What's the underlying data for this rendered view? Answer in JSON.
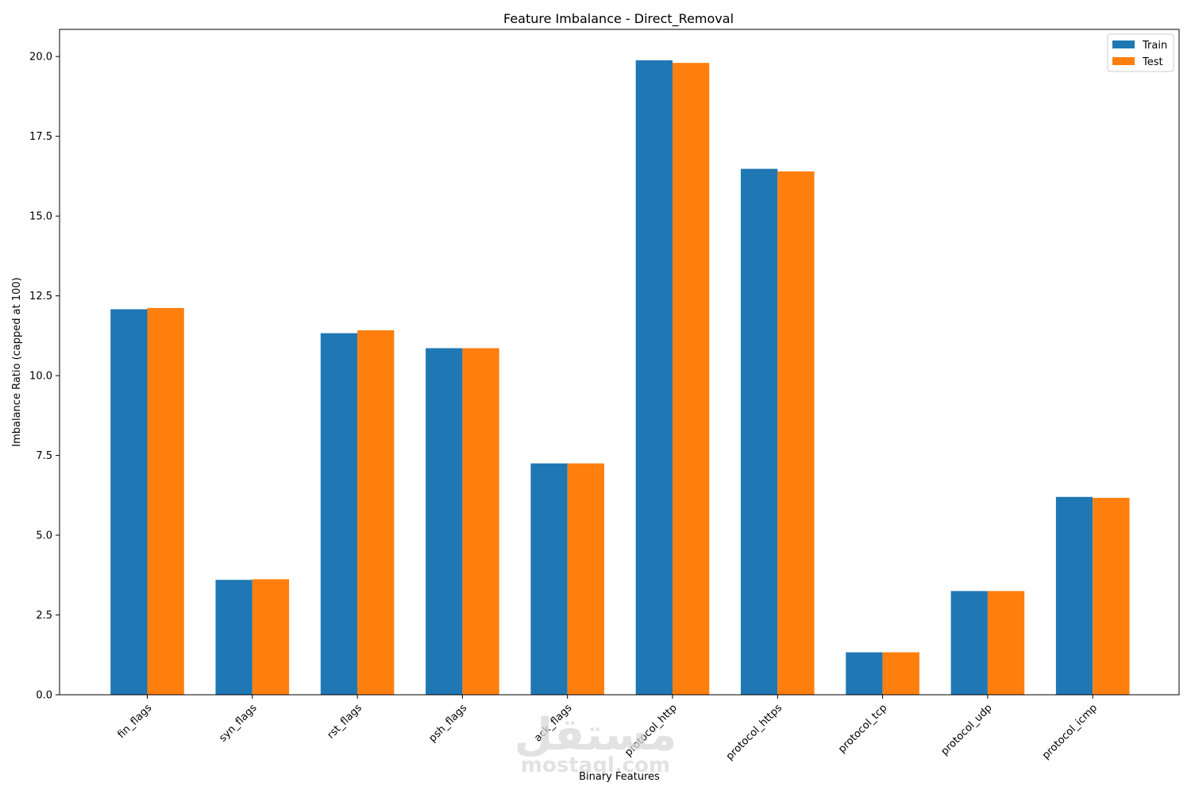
{
  "chart_data": {
    "type": "bar",
    "title": "Feature Imbalance - Direct_Removal",
    "xlabel": "Binary Features",
    "ylabel": "Imbalance Ratio (capped at 100)",
    "categories": [
      "fin_flags",
      "syn_flags",
      "rst_flags",
      "psh_flags",
      "ack_flags",
      "protocol_http",
      "protocol_https",
      "protocol_tcp",
      "protocol_udp",
      "protocol_icmp"
    ],
    "series": [
      {
        "name": "Train",
        "color": "#1f77b4",
        "values": [
          12.08,
          3.6,
          11.33,
          10.86,
          7.25,
          19.88,
          16.48,
          1.33,
          3.25,
          6.2
        ]
      },
      {
        "name": "Test",
        "color": "#ff7f0e",
        "values": [
          12.12,
          3.62,
          11.42,
          10.86,
          7.25,
          19.8,
          16.4,
          1.33,
          3.25,
          6.17
        ]
      }
    ],
    "ylim": [
      0,
      20.85
    ],
    "yticks": [
      0.0,
      2.5,
      5.0,
      7.5,
      10.0,
      12.5,
      15.0,
      17.5,
      20.0
    ],
    "ytick_labels": [
      "0.0",
      "2.5",
      "5.0",
      "7.5",
      "10.0",
      "12.5",
      "15.0",
      "17.5",
      "20.0"
    ],
    "legend_position": "top-right",
    "grid": false
  },
  "watermark": {
    "arabic": "مستقل",
    "latin": "mostaql.com"
  }
}
